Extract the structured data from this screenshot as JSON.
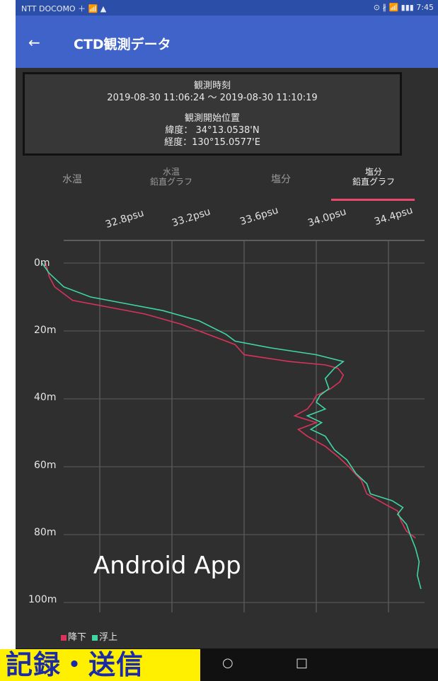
{
  "status_bar": {
    "carrier": "NTT DOCOMO ＋ 📶 ▲",
    "right": "⊙ ∦ 📶 ▮▮▮ 7:45"
  },
  "app_bar": {
    "back_icon": "arrow-left",
    "title": "CTD観測データ"
  },
  "info": {
    "time_label": "観測時刻",
    "time_range": "2019-08-30 11:06:24 〜 2019-08-30 11:10:19",
    "position_label": "観測開始位置",
    "latitude": "緯度： 34°13.0538'N",
    "longitude": "経度：130°15.0577'E"
  },
  "tabs": [
    {
      "line1": "水温",
      "line2": ""
    },
    {
      "line1": "水温",
      "line2": "鉛直グラフ"
    },
    {
      "line1": "塩分",
      "line2": ""
    },
    {
      "line1": "塩分",
      "line2": "鉛直グラフ"
    }
  ],
  "active_tab": 3,
  "watermark": "Android App",
  "legend": {
    "down": "降下",
    "up": "浮上"
  },
  "nav": {
    "home": "○",
    "recents": "□"
  },
  "banner": "記録・送信",
  "colors": {
    "down": "#d9335a",
    "up": "#3fd6a5",
    "appbar": "#3f63c8",
    "tab_indicator": "#e84a6f"
  },
  "chart_data": {
    "type": "line",
    "xlabel": "",
    "ylabel": "",
    "x_ticks": [
      "32.8psu",
      "33.2psu",
      "33.6psu",
      "34.0psu",
      "34.4psu"
    ],
    "y_ticks": [
      "0m",
      "20m",
      "40m",
      "60m",
      "80m",
      "100m"
    ],
    "xlim": [
      32.5,
      34.6
    ],
    "ylim": [
      0,
      102
    ],
    "x_axis": "top",
    "y_inverted": true,
    "grid": true,
    "series": [
      {
        "name": "降下",
        "points": [
          [
            32.5,
            0
          ],
          [
            32.52,
            4
          ],
          [
            32.55,
            7
          ],
          [
            32.65,
            11
          ],
          [
            32.85,
            13
          ],
          [
            33.05,
            15
          ],
          [
            33.25,
            18
          ],
          [
            33.45,
            22
          ],
          [
            33.55,
            24
          ],
          [
            33.6,
            27
          ],
          [
            33.85,
            29
          ],
          [
            34.05,
            30
          ],
          [
            34.12,
            31
          ],
          [
            34.15,
            33
          ],
          [
            34.13,
            35
          ],
          [
            34.08,
            37
          ],
          [
            34.0,
            39
          ],
          [
            33.98,
            41
          ],
          [
            33.95,
            43
          ],
          [
            33.88,
            45
          ],
          [
            34.0,
            47
          ],
          [
            33.9,
            49
          ],
          [
            33.95,
            51
          ],
          [
            34.05,
            54
          ],
          [
            34.12,
            57
          ],
          [
            34.18,
            60
          ],
          [
            34.25,
            64
          ],
          [
            34.28,
            68
          ],
          [
            34.38,
            71
          ],
          [
            34.45,
            73
          ],
          [
            34.47,
            76
          ],
          [
            34.5,
            79
          ],
          [
            34.55,
            81
          ]
        ]
      },
      {
        "name": "浮上",
        "points": [
          [
            32.48,
            0
          ],
          [
            32.52,
            3
          ],
          [
            32.6,
            7
          ],
          [
            32.75,
            10
          ],
          [
            32.95,
            12
          ],
          [
            33.15,
            14
          ],
          [
            33.35,
            17
          ],
          [
            33.5,
            21
          ],
          [
            33.55,
            23
          ],
          [
            33.75,
            25
          ],
          [
            34.0,
            27
          ],
          [
            34.15,
            29
          ],
          [
            34.1,
            31
          ],
          [
            34.05,
            34
          ],
          [
            34.07,
            37
          ],
          [
            34.02,
            39
          ],
          [
            34.0,
            41
          ],
          [
            34.05,
            43
          ],
          [
            33.95,
            45
          ],
          [
            34.03,
            47
          ],
          [
            33.97,
            49
          ],
          [
            34.05,
            51
          ],
          [
            34.1,
            55
          ],
          [
            34.17,
            58
          ],
          [
            34.22,
            62
          ],
          [
            34.28,
            65
          ],
          [
            34.3,
            68
          ],
          [
            34.42,
            70
          ],
          [
            34.48,
            72
          ],
          [
            34.45,
            74
          ],
          [
            34.5,
            77
          ],
          [
            34.52,
            80
          ],
          [
            34.55,
            84
          ],
          [
            34.57,
            88
          ],
          [
            34.56,
            92
          ],
          [
            34.58,
            96
          ]
        ]
      }
    ]
  }
}
